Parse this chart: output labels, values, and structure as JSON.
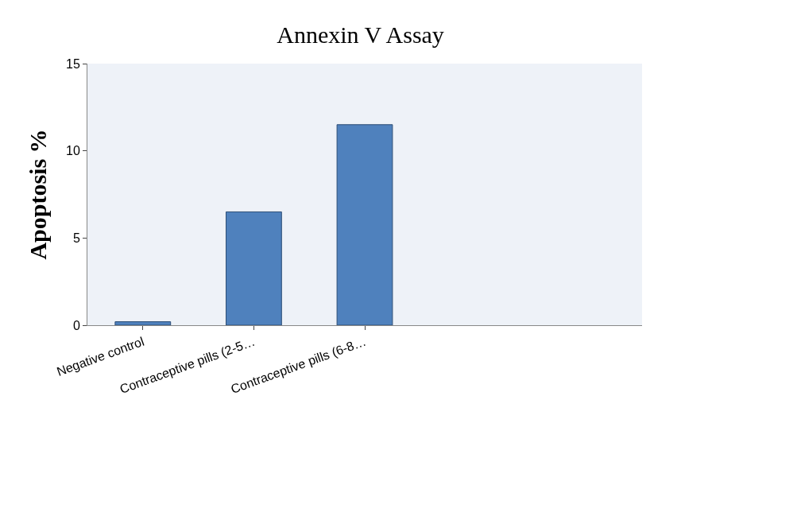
{
  "chart_data": {
    "type": "bar",
    "title": "Annexin V Assay",
    "ylabel": "Apoptosis %",
    "categories": [
      "Negative control",
      "Contraceptive pills (2-5…",
      "Contraceptive pills (6-8…",
      null,
      null
    ],
    "values": [
      0.2,
      6.5,
      11.5,
      null,
      null
    ],
    "color": "#4f81bd",
    "ylim": [
      0,
      15
    ],
    "yticks": [
      0,
      5,
      10,
      15
    ],
    "grid": false,
    "legend": false
  }
}
